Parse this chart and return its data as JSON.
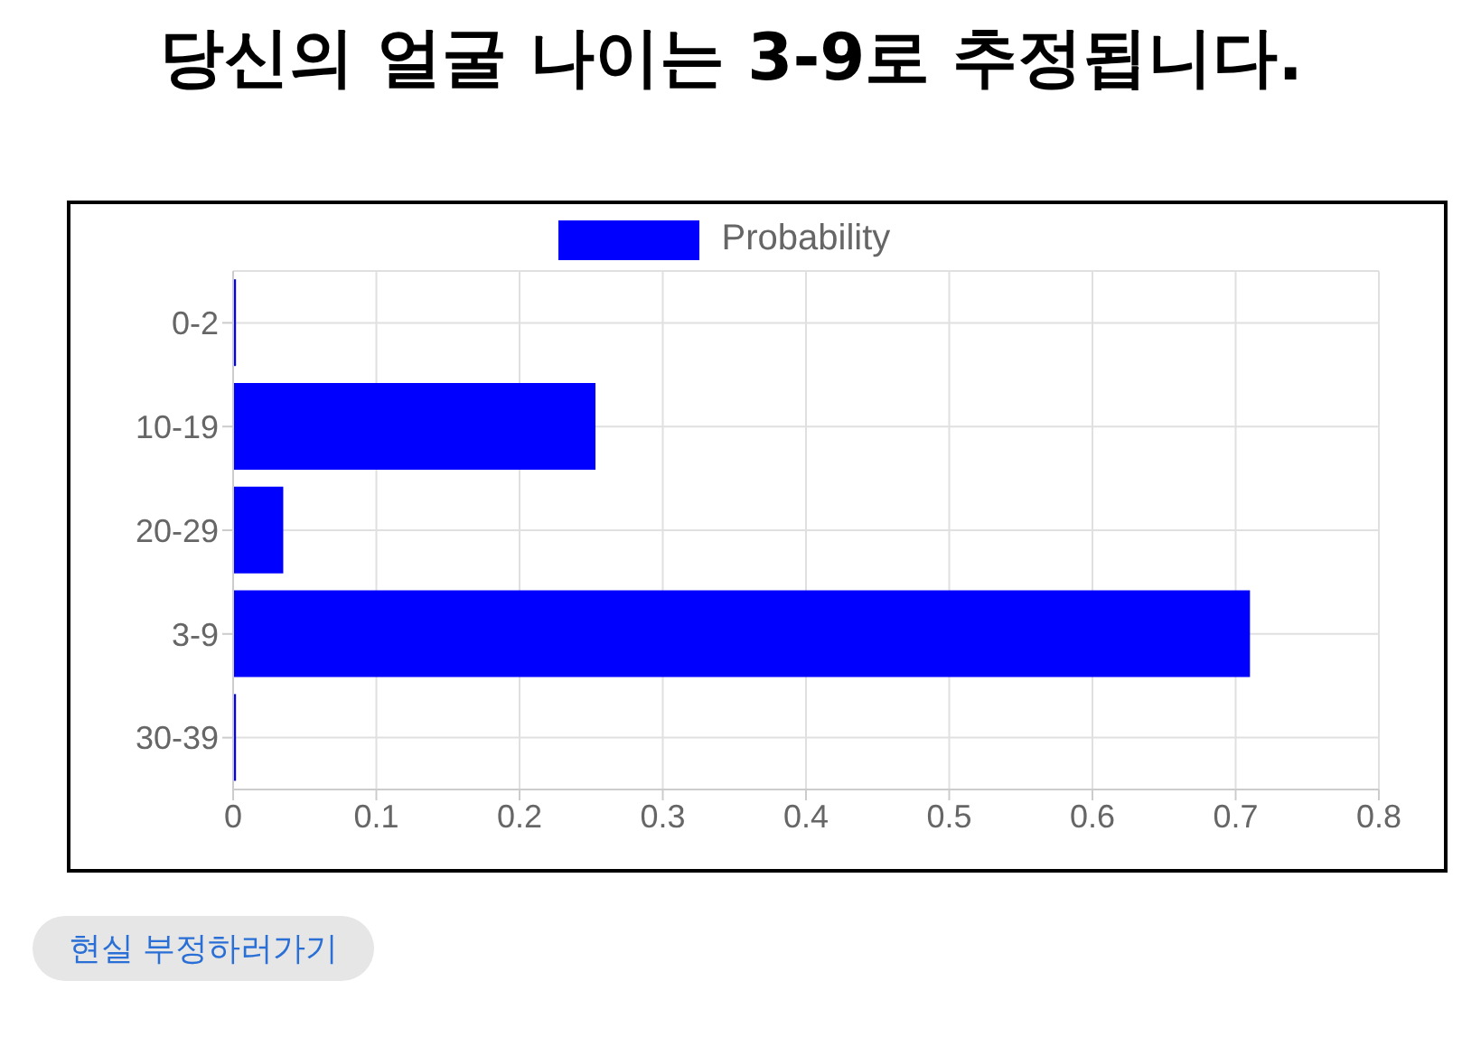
{
  "chart_data": {
    "type": "bar",
    "title": "당신의 얼굴 나이는 3-9로 추정됩니다.",
    "orientation": "horizontal",
    "categories": [
      "0-2",
      "10-19",
      "20-29",
      "3-9",
      "30-39"
    ],
    "series": [
      {
        "name": "Probability",
        "color": "#0000ff",
        "values": [
          0.002,
          0.253,
          0.035,
          0.71,
          0.002
        ]
      }
    ],
    "xlim": [
      0,
      0.8
    ],
    "xticks": [
      0,
      0.1,
      0.2,
      0.3,
      0.4,
      0.5,
      0.6,
      0.7,
      0.8
    ],
    "grid": true,
    "legend": "top",
    "annotations": [
      "현실 부정하러가기"
    ]
  }
}
